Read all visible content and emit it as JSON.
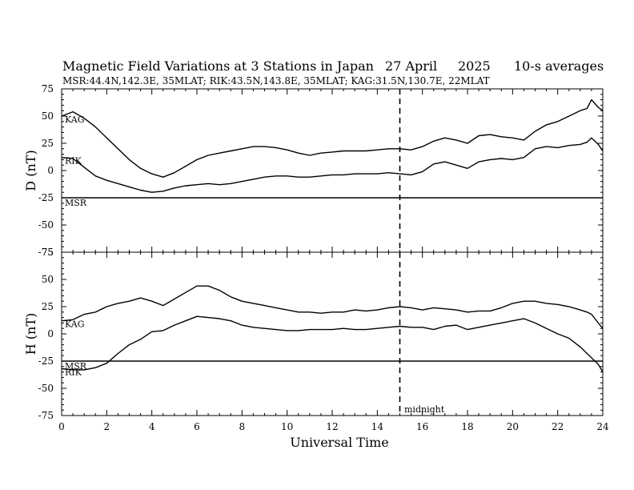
{
  "title": {
    "main": "Magnetic Field Variations at 3 Stations in Japan",
    "date": "27 April",
    "year": "2025",
    "avg": "10-s averages",
    "stations": "MSR:44.4N,142.3E, 35MLAT;  RIK:43.5N,143.8E, 35MLAT;  KAG:31.5N,130.7E, 22MLAT"
  },
  "xlabel": "Universal Time",
  "midnight_label": "midnight",
  "chart_data": [
    {
      "type": "line",
      "ylabel": "D (nT)",
      "ylim": [
        -75,
        75
      ],
      "yticks": [
        75,
        50,
        25,
        0,
        -25,
        -50,
        -75
      ],
      "xlim": [
        0,
        24
      ],
      "xticks": [
        0,
        2,
        4,
        6,
        8,
        10,
        12,
        14,
        16,
        18,
        20,
        22,
        24
      ],
      "midnight_ut": 15,
      "series": [
        {
          "name": "KAG",
          "x": [
            0,
            0.5,
            1,
            1.5,
            2,
            2.5,
            3,
            3.5,
            4,
            4.5,
            5,
            5.5,
            6,
            6.5,
            7,
            7.5,
            8,
            8.5,
            9,
            9.5,
            10,
            10.5,
            11,
            11.5,
            12,
            12.5,
            13,
            13.5,
            14,
            14.5,
            15,
            15.5,
            16,
            16.5,
            17,
            17.5,
            18,
            18.5,
            19,
            19.5,
            20,
            20.5,
            21,
            21.5,
            22,
            22.5,
            23,
            23.3,
            23.5,
            23.8,
            24
          ],
          "y": [
            50,
            54,
            48,
            40,
            30,
            20,
            10,
            2,
            -3,
            -6,
            -2,
            4,
            10,
            14,
            16,
            18,
            20,
            22,
            22,
            21,
            19,
            16,
            14,
            16,
            17,
            18,
            18,
            18,
            19,
            20,
            20,
            19,
            22,
            27,
            30,
            28,
            25,
            32,
            33,
            31,
            30,
            28,
            36,
            42,
            45,
            50,
            55,
            57,
            65,
            58,
            55
          ]
        },
        {
          "name": "RIK",
          "x": [
            0,
            0.5,
            1,
            1.5,
            2,
            2.5,
            3,
            3.5,
            4,
            4.5,
            5,
            5.5,
            6,
            6.5,
            7,
            7.5,
            8,
            8.5,
            9,
            9.5,
            10,
            10.5,
            11,
            11.5,
            12,
            12.5,
            13,
            13.5,
            14,
            14.5,
            15,
            15.5,
            16,
            16.5,
            17,
            17.5,
            18,
            18.5,
            19,
            19.5,
            20,
            20.5,
            21,
            21.5,
            22,
            22.5,
            23,
            23.3,
            23.5,
            23.8,
            24
          ],
          "y": [
            12,
            11,
            3,
            -5,
            -9,
            -12,
            -15,
            -18,
            -20,
            -19,
            -16,
            -14,
            -13,
            -12,
            -13,
            -12,
            -10,
            -8,
            -6,
            -5,
            -5,
            -6,
            -6,
            -5,
            -4,
            -4,
            -3,
            -3,
            -3,
            -2,
            -3,
            -4,
            -1,
            6,
            8,
            5,
            2,
            8,
            10,
            11,
            10,
            12,
            20,
            22,
            21,
            23,
            24,
            26,
            30,
            24,
            18
          ]
        },
        {
          "name": "MSR",
          "x": [
            0,
            24
          ],
          "y": [
            -25,
            -25
          ]
        }
      ]
    },
    {
      "type": "line",
      "ylabel": "H (nT)",
      "ylim": [
        -75,
        75
      ],
      "yticks": [
        75,
        50,
        25,
        0,
        -25,
        -50,
        -75
      ],
      "xlim": [
        0,
        24
      ],
      "xticks": [
        0,
        2,
        4,
        6,
        8,
        10,
        12,
        14,
        16,
        18,
        20,
        22,
        24
      ],
      "midnight_ut": 15,
      "series": [
        {
          "name": "KAG",
          "x": [
            0,
            0.5,
            1,
            1.5,
            2,
            2.5,
            3,
            3.5,
            4,
            4.5,
            5,
            5.5,
            6,
            6.5,
            7,
            7.5,
            8,
            8.5,
            9,
            9.5,
            10,
            10.5,
            11,
            11.5,
            12,
            12.5,
            13,
            13.5,
            14,
            14.5,
            15,
            15.5,
            16,
            16.5,
            17,
            17.5,
            18,
            18.5,
            19,
            19.5,
            20,
            20.5,
            21,
            21.5,
            22,
            22.5,
            23,
            23.3,
            23.5,
            23.8,
            24
          ],
          "y": [
            12,
            13,
            18,
            20,
            25,
            28,
            30,
            33,
            30,
            26,
            32,
            38,
            44,
            44,
            40,
            34,
            30,
            28,
            26,
            24,
            22,
            20,
            20,
            19,
            20,
            20,
            22,
            21,
            22,
            24,
            25,
            24,
            22,
            24,
            23,
            22,
            20,
            21,
            21,
            24,
            28,
            30,
            30,
            28,
            27,
            25,
            22,
            20,
            18,
            10,
            5
          ]
        },
        {
          "name": "RIK",
          "x": [
            0,
            0.5,
            1,
            1.5,
            2,
            2.5,
            3,
            3.5,
            4,
            4.5,
            5,
            5.5,
            6,
            6.5,
            7,
            7.5,
            8,
            8.5,
            9,
            9.5,
            10,
            10.5,
            11,
            11.5,
            12,
            12.5,
            13,
            13.5,
            14,
            14.5,
            15,
            15.5,
            16,
            16.5,
            17,
            17.5,
            18,
            18.5,
            19,
            19.5,
            20,
            20.5,
            21,
            21.5,
            22,
            22.5,
            23,
            23.3,
            23.5,
            23.8,
            24
          ],
          "y": [
            -32,
            -33,
            -33,
            -31,
            -27,
            -18,
            -10,
            -5,
            2,
            3,
            8,
            12,
            16,
            15,
            14,
            12,
            8,
            6,
            5,
            4,
            3,
            3,
            4,
            4,
            4,
            5,
            4,
            4,
            5,
            6,
            7,
            6,
            6,
            4,
            7,
            8,
            4,
            6,
            8,
            10,
            12,
            14,
            10,
            5,
            0,
            -4,
            -12,
            -18,
            -22,
            -28,
            -35
          ]
        },
        {
          "name": "MSR",
          "x": [
            0,
            24
          ],
          "y": [
            -25,
            -25
          ]
        }
      ]
    }
  ]
}
